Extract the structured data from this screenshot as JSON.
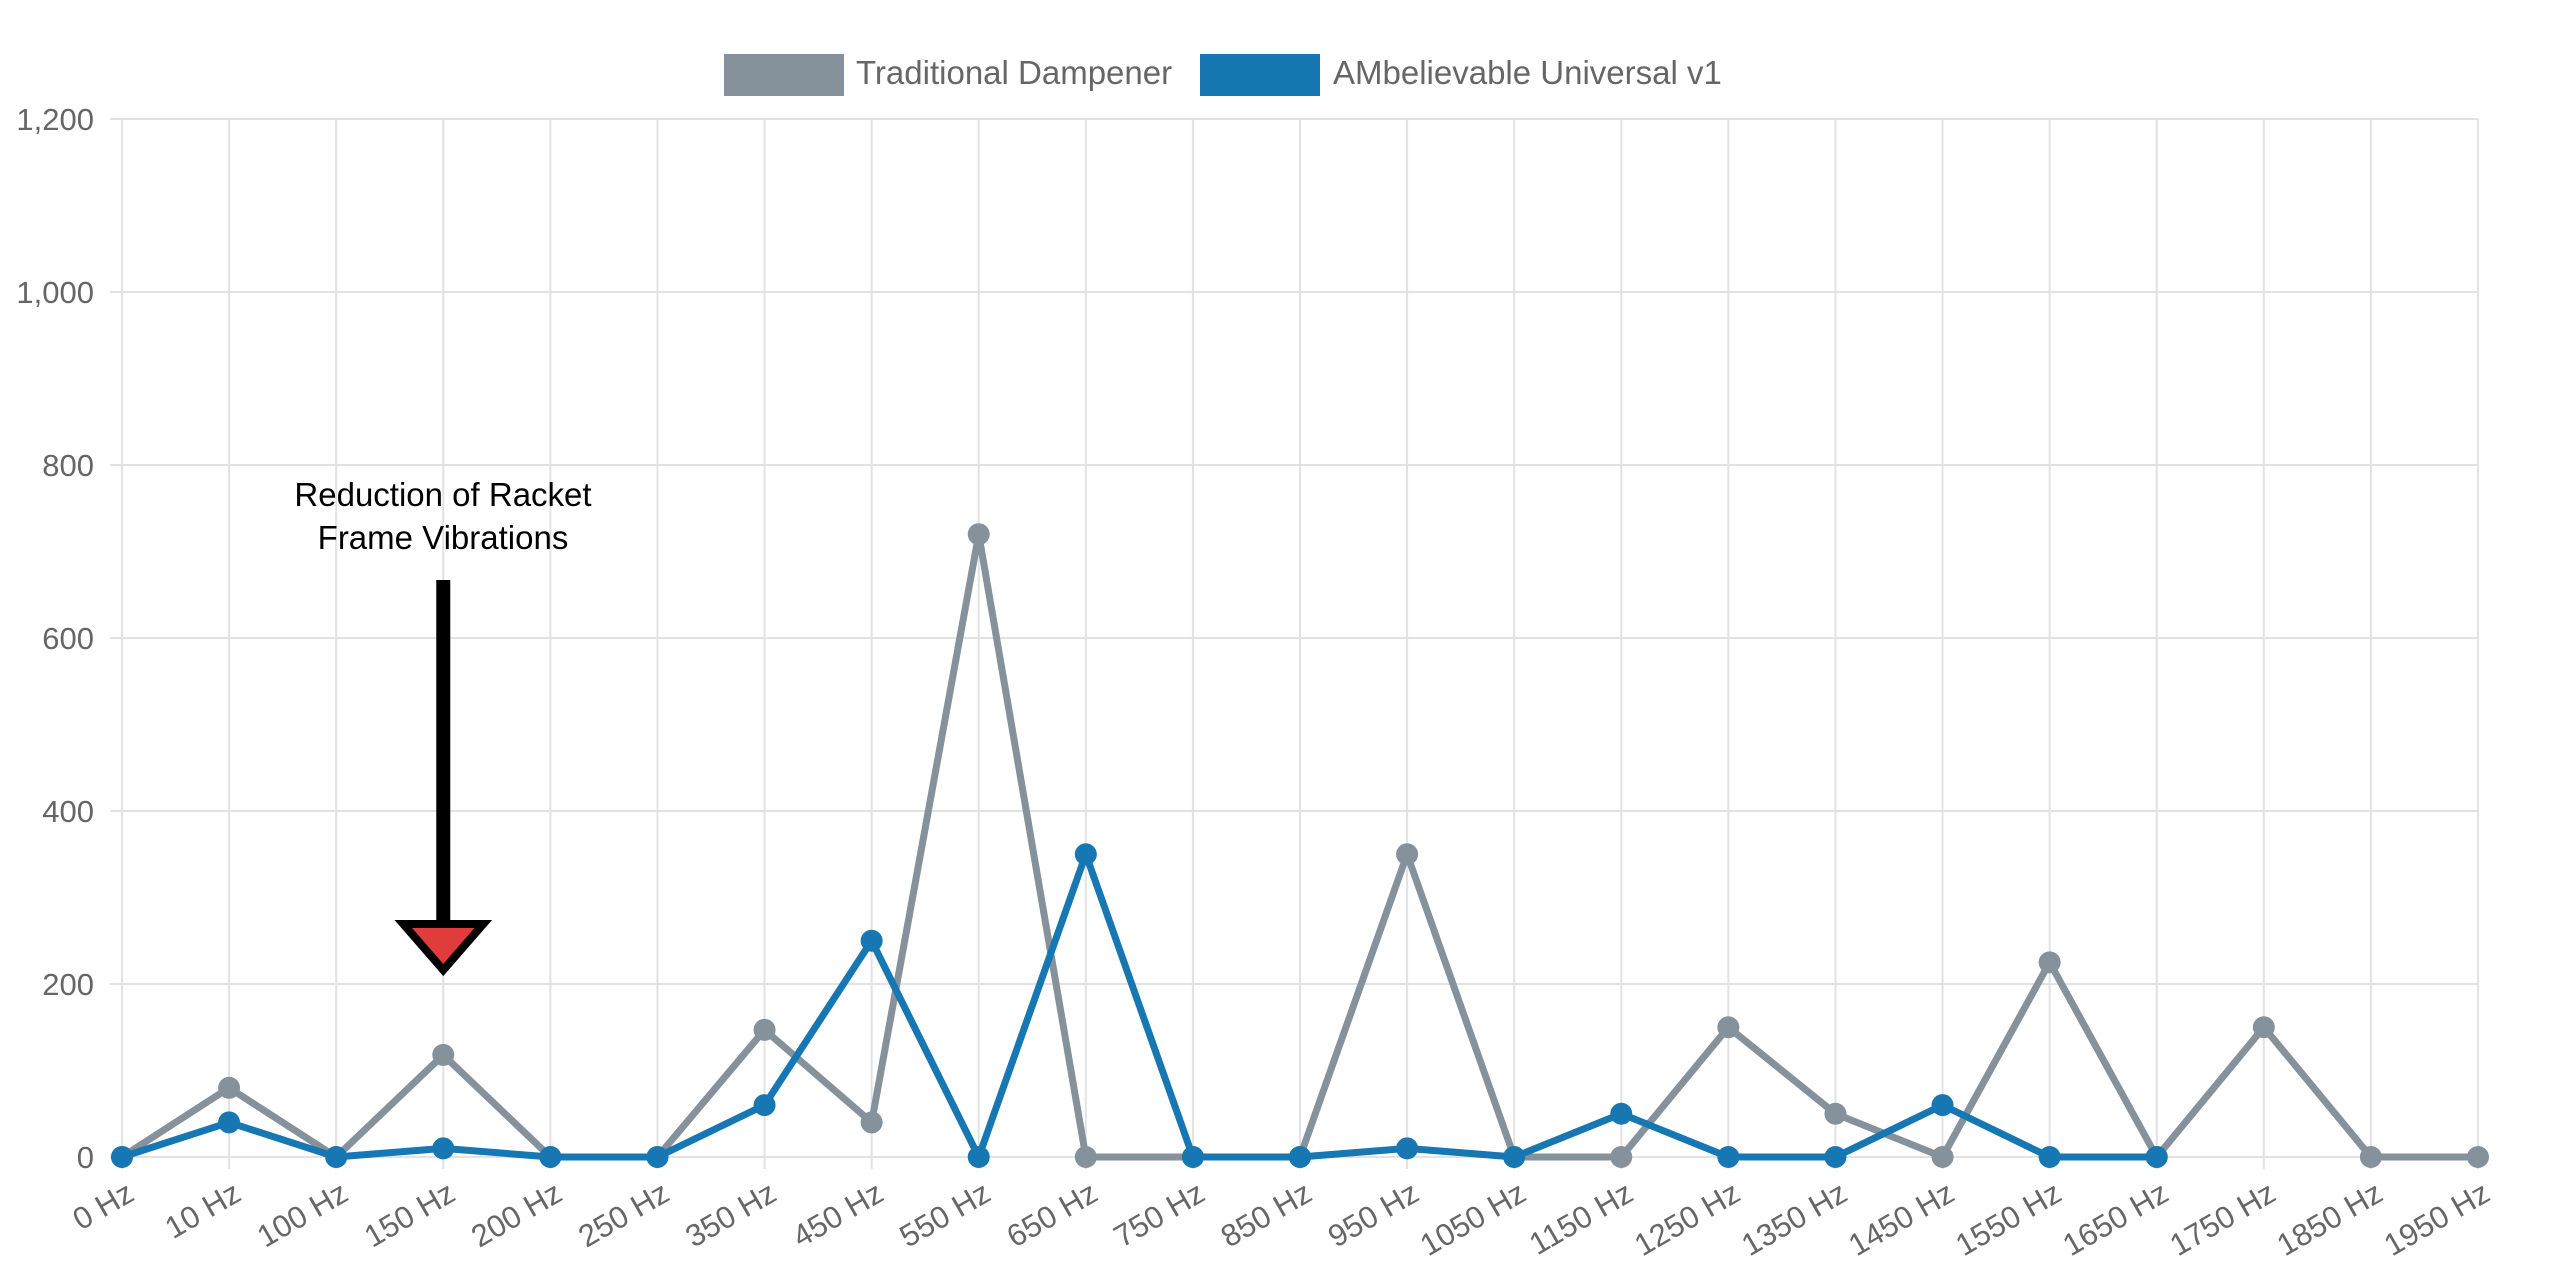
{
  "chart_data": {
    "type": "line",
    "categories": [
      "0 Hz",
      "10 Hz",
      "100 Hz",
      "150 Hz",
      "200 Hz",
      "250 Hz",
      "350 Hz",
      "450 Hz",
      "550 Hz",
      "650 Hz",
      "750 Hz",
      "850 Hz",
      "950 Hz",
      "1050 Hz",
      "1150 Hz",
      "1250 Hz",
      "1350 Hz",
      "1450 Hz",
      "1550 Hz",
      "1650 Hz",
      "1750 Hz",
      "1850 Hz",
      "1950 Hz"
    ],
    "series": [
      {
        "name": "Traditional Dampener",
        "color": "#85929b",
        "values": [
          0,
          80,
          0,
          118,
          0,
          0,
          147,
          40,
          720,
          0,
          0,
          0,
          350,
          0,
          0,
          150,
          50,
          0,
          225,
          0,
          150,
          0,
          0
        ]
      },
      {
        "name": "AMbelievable Universal v1",
        "color": "#1677b3",
        "values": [
          0,
          40,
          0,
          10,
          0,
          0,
          60,
          250,
          0,
          350,
          0,
          0,
          10,
          0,
          50,
          0,
          0,
          60,
          0,
          0,
          null,
          null,
          null
        ]
      }
    ],
    "yticks": [
      "0",
      "200",
      "400",
      "600",
      "800",
      "1,000",
      "1,200"
    ],
    "ylim": [
      0,
      1200
    ],
    "grid": true,
    "legend_position": "top-center",
    "annotation": {
      "text_line1": "Reduction of Racket",
      "text_line2": "Frame Vibrations",
      "category": "150 Hz",
      "arrow_color": "#000000",
      "arrow_head_color": "#e03c3c"
    },
    "xlabel": "",
    "ylabel": "",
    "title": ""
  }
}
